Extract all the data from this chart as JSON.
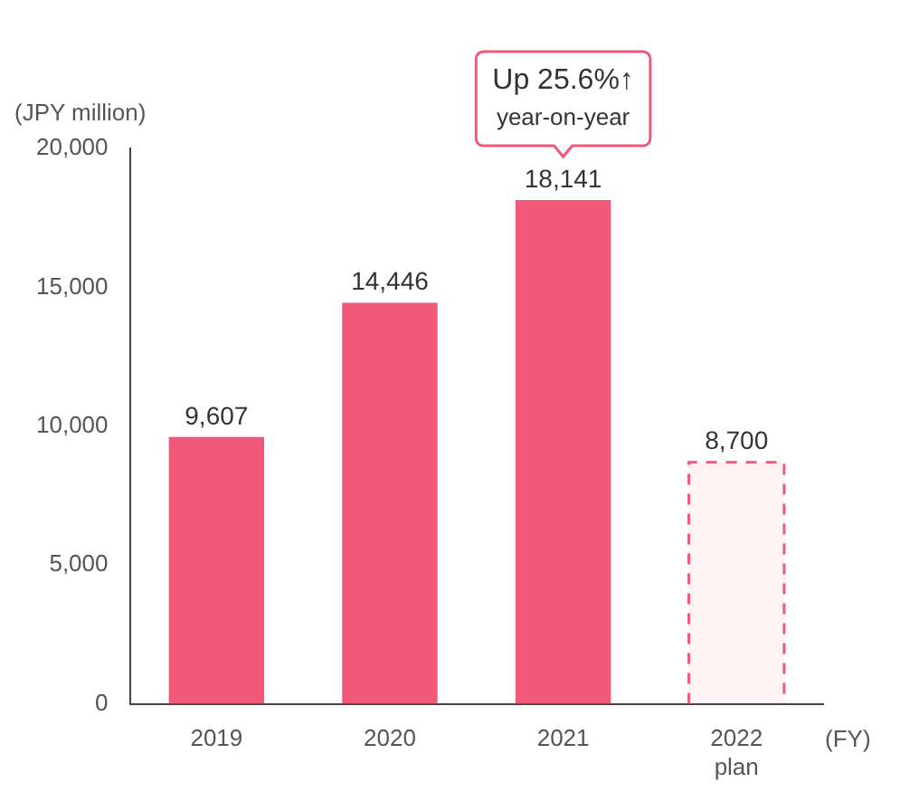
{
  "chart_data": {
    "type": "bar",
    "ylabel": "(JPY million)",
    "xlabel": "(FY)",
    "categories": [
      "2019",
      "2020",
      "2021",
      "2022\nplan"
    ],
    "stacked": true,
    "series": [
      {
        "color": "#f05a78",
        "line_style": "solid",
        "values": [
          9607,
          14446,
          18141,
          null
        ],
        "value_labels": [
          "9,607",
          "14,446",
          "18,141",
          null
        ]
      },
      {
        "color": "#f05a78",
        "line_style": "dashed",
        "values": [
          null,
          null,
          null,
          8700
        ],
        "value_labels": [
          null,
          null,
          null,
          "8,700"
        ]
      }
    ],
    "ylim": [
      0,
      20000
    ],
    "yticks": [
      0,
      {
        "value": 5000,
        "label": "5,000"
      },
      {
        "value": 10000,
        "label": "10,000"
      },
      {
        "value": 15000,
        "label": "15,000"
      },
      {
        "value": 20000,
        "label": "20,000"
      }
    ],
    "grid": false,
    "legend": false,
    "annotations": [
      {
        "text": "Up 25.6%↑\nyear-on-year",
        "x": "2021",
        "y": 18141
      }
    ]
  }
}
